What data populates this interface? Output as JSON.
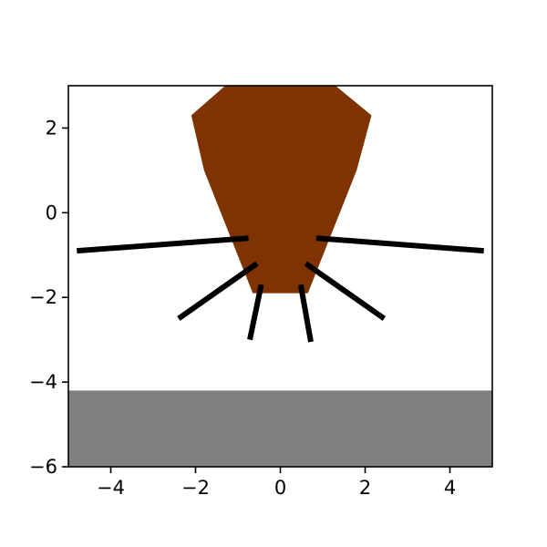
{
  "chart_data": {
    "type": "area",
    "title": "",
    "xlabel": "",
    "ylabel": "",
    "xlim": [
      -5,
      5
    ],
    "ylim": [
      -6,
      3
    ],
    "x_ticks": [
      -4,
      -2,
      0,
      2,
      4
    ],
    "y_ticks": [
      -6,
      -4,
      -2,
      0,
      2
    ],
    "x_tick_labels": [
      "−4",
      "−2",
      "0",
      "2",
      "4"
    ],
    "y_tick_labels": [
      "−6",
      "−4",
      "−2",
      "0",
      "2"
    ],
    "grid": false,
    "shapes": {
      "ground": {
        "color": "#808080",
        "polygon": [
          [
            -5,
            -6
          ],
          [
            5,
            -6
          ],
          [
            5,
            -4.2
          ],
          [
            -5,
            -4.2
          ]
        ]
      },
      "body": {
        "color": "#7f3300",
        "polygon": [
          [
            -1.3,
            3.0
          ],
          [
            1.3,
            3.0
          ],
          [
            2.15,
            2.3
          ],
          [
            1.8,
            1.0
          ],
          [
            0.65,
            -1.9
          ],
          [
            -0.65,
            -1.9
          ],
          [
            -1.8,
            1.0
          ],
          [
            -2.1,
            2.3
          ]
        ]
      },
      "legs": {
        "color": "#000000",
        "segments": [
          [
            [
              -0.75,
              -0.6
            ],
            [
              -4.8,
              -0.9
            ]
          ],
          [
            [
              0.85,
              -0.6
            ],
            [
              4.8,
              -0.9
            ]
          ],
          [
            [
              -0.55,
              -1.2
            ],
            [
              -2.4,
              -2.5
            ]
          ],
          [
            [
              0.6,
              -1.2
            ],
            [
              2.45,
              -2.5
            ]
          ],
          [
            [
              -0.45,
              -1.7
            ],
            [
              -0.72,
              -3.0
            ]
          ],
          [
            [
              0.48,
              -1.7
            ],
            [
              0.72,
              -3.05
            ]
          ]
        ]
      }
    }
  }
}
